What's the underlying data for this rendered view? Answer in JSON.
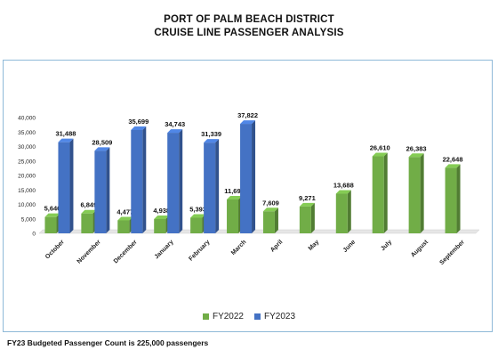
{
  "title_line1": "PORT OF PALM BEACH DISTRICT",
  "title_line2": "CRUISE LINE PASSENGER ANALYSIS",
  "footnote": "FY23 Budgeted Passenger Count is 225,000 passengers",
  "chart_data": {
    "type": "bar",
    "title": "PORT OF PALM BEACH DISTRICT CRUISE LINE PASSENGER ANALYSIS",
    "categories": [
      "October",
      "November",
      "December",
      "January",
      "February",
      "March",
      "April",
      "May",
      "June",
      "July",
      "August",
      "September"
    ],
    "series": [
      {
        "name": "FY2022",
        "color": "#71ad47",
        "values": [
          5640,
          6849,
          4477,
          4938,
          5393,
          11698,
          7609,
          9271,
          13688,
          26610,
          26383,
          22648
        ],
        "labels": [
          "5,640",
          "6,849",
          "4,477",
          "4,938",
          "5,393",
          "11,698",
          "7,609",
          "9,271",
          "13,688",
          "26,610",
          "26,383",
          "22,648"
        ]
      },
      {
        "name": "FY2023",
        "color": "#4472c4",
        "values": [
          31488,
          28509,
          35699,
          34743,
          31339,
          37822,
          null,
          null,
          null,
          null,
          null,
          null
        ],
        "labels": [
          "31,488",
          "28,509",
          "35,699",
          "34,743",
          "31,339",
          "37,822",
          null,
          null,
          null,
          null,
          null,
          null
        ]
      }
    ],
    "yticks": [
      0,
      5000,
      10000,
      15000,
      20000,
      25000,
      30000,
      35000,
      40000
    ],
    "ytick_labels": [
      "0",
      "5,000",
      "10,000",
      "15,000",
      "20,000",
      "25,000",
      "30,000",
      "35,000",
      "40,000"
    ],
    "ylim": [
      0,
      40000
    ],
    "grid": false,
    "legend_position": "bottom"
  }
}
